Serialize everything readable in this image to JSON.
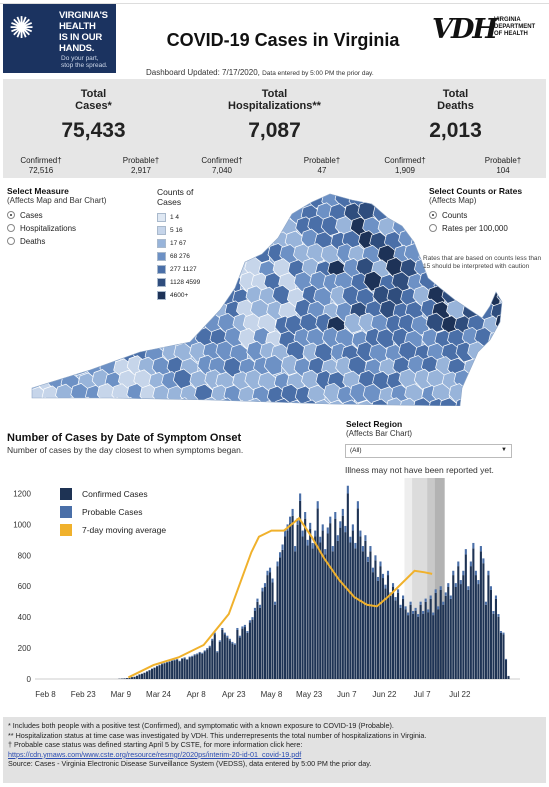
{
  "brand": {
    "line1": "VIRGINIA'S",
    "line2": "HEALTH",
    "line3": "IS IN OUR",
    "line4": "HANDS.",
    "tag1": "Do your part,",
    "tag2": "stop the spread."
  },
  "title": "COVID-19 Cases in Virginia",
  "vdh": {
    "logo": "VDH",
    "dept1": "VIRGINIA",
    "dept2": "DEPARTMENT",
    "dept3": "OF HEALTH"
  },
  "updated": {
    "main": "Dashboard Updated: 7/17/2020,",
    "small": "Data entered by 5:00 PM the prior day."
  },
  "stats": [
    {
      "label1": "Total",
      "label2": "Cases*",
      "value": "75,433",
      "a_label": "Confirmed†",
      "a_value": "72,516",
      "b_label": "Probable†",
      "b_value": "2,917"
    },
    {
      "label1": "Total",
      "label2": "Hospitalizations**",
      "value": "7,087",
      "a_label": "Confirmed†",
      "a_value": "7,040",
      "b_label": "Probable†",
      "b_value": "47"
    },
    {
      "label1": "Total",
      "label2": "Deaths",
      "value": "2,013",
      "a_label": "Confirmed†",
      "a_value": "1,909",
      "b_label": "Probable†",
      "b_value": "104"
    }
  ],
  "measure": {
    "title": "Select Measure",
    "subtitle": "(Affects Map and Bar Chart)",
    "options": [
      "Cases",
      "Hospitalizations",
      "Deaths"
    ],
    "selected": 0
  },
  "legend": {
    "title1": "Counts of",
    "title2": "Cases",
    "bins": [
      {
        "label": "1    4",
        "color": "#dfe8f3"
      },
      {
        "label": "5    16",
        "color": "#c6d5ea"
      },
      {
        "label": "17    67",
        "color": "#98b4da"
      },
      {
        "label": "68    276",
        "color": "#6d91c5"
      },
      {
        "label": "277    1127",
        "color": "#4a6fa8"
      },
      {
        "label": "1128    4599",
        "color": "#2f4d7d"
      },
      {
        "label": "4600+",
        "color": "#1d3257"
      }
    ]
  },
  "rates": {
    "title": "Select Counts or Rates",
    "subtitle": "(Affects Map)",
    "options": [
      "Counts",
      "Rates per 100,000"
    ],
    "selected": 0
  },
  "rates_note": "Rates that are based on counts less than 15 should be interpreted with caution",
  "cases_chart": {
    "title": "Number of Cases by Date of Symptom Onset",
    "subtitle": "Number of cases by the day closest to when symptoms began."
  },
  "region": {
    "title": "Select Region",
    "subtitle": "(Affects Bar Chart)",
    "value": "(All)"
  },
  "illness_note": "Illness may not have been reported yet.",
  "colors": {
    "confirmed": "#1e3354",
    "probable": "#4a6fa8",
    "average": "#f0b12c",
    "brand": "#1b3360"
  },
  "chart_data": {
    "type": "bar",
    "x_ticks": [
      "Feb 8",
      "Feb 23",
      "Mar 9",
      "Mar 24",
      "Apr 8",
      "Apr 23",
      "May 8",
      "May 23",
      "Jun 7",
      "Jun 22",
      "Jul 7",
      "Jul 22"
    ],
    "y_ticks": [
      0,
      200,
      400,
      600,
      800,
      1000,
      1200
    ],
    "ylim": [
      0,
      1300
    ],
    "series": [
      {
        "name": "Confirmed Cases",
        "type": "bar"
      },
      {
        "name": "Probable Cases",
        "type": "bar"
      },
      {
        "name": "7-day moving average",
        "type": "line"
      }
    ],
    "start_date": "2020-02-05",
    "daily_totals": [
      0,
      0,
      0,
      0,
      0,
      0,
      0,
      0,
      0,
      0,
      0,
      0,
      0,
      0,
      0,
      0,
      0,
      0,
      0,
      0,
      0,
      0,
      0,
      0,
      0,
      0,
      0,
      0,
      0,
      0,
      0,
      0,
      2,
      3,
      4,
      6,
      8,
      12,
      15,
      22,
      30,
      35,
      42,
      50,
      58,
      68,
      75,
      85,
      92,
      100,
      105,
      110,
      115,
      122,
      125,
      130,
      118,
      135,
      140,
      128,
      145,
      150,
      160,
      165,
      175,
      170,
      185,
      200,
      215,
      260,
      300,
      180,
      250,
      330,
      300,
      280,
      260,
      240,
      230,
      330,
      280,
      340,
      350,
      310,
      380,
      400,
      460,
      520,
      480,
      590,
      620,
      700,
      720,
      650,
      500,
      760,
      820,
      870,
      960,
      1000,
      1050,
      1100,
      860,
      1040,
      1200,
      960,
      1080,
      900,
      1010,
      880,
      960,
      1150,
      920,
      1000,
      840,
      980,
      1050,
      860,
      1080,
      930,
      1020,
      1100,
      990,
      1250,
      920,
      1000,
      880,
      1150,
      960,
      860,
      930,
      790,
      860,
      720,
      800,
      660,
      760,
      680,
      610,
      700,
      560,
      620,
      530,
      580,
      480,
      540,
      470,
      430,
      500,
      440,
      460,
      420,
      500,
      440,
      520,
      450,
      540,
      430,
      580,
      470,
      600,
      500,
      560,
      620,
      540,
      700,
      620,
      760,
      640,
      700,
      840,
      600,
      760,
      880,
      700,
      640,
      860,
      780,
      500,
      700,
      600,
      440,
      540,
      420,
      310,
      300,
      130,
      20
    ],
    "moving_average": [
      {
        "x": "2020-03-12",
        "y": 10
      },
      {
        "x": "2020-03-22",
        "y": 90
      },
      {
        "x": "2020-04-01",
        "y": 140
      },
      {
        "x": "2020-04-11",
        "y": 220
      },
      {
        "x": "2020-04-21",
        "y": 420
      },
      {
        "x": "2020-04-30",
        "y": 820
      },
      {
        "x": "2020-05-03",
        "y": 920
      },
      {
        "x": "2020-05-08",
        "y": 960
      },
      {
        "x": "2020-05-13",
        "y": 960
      },
      {
        "x": "2020-05-19",
        "y": 1040
      },
      {
        "x": "2020-05-24",
        "y": 920
      },
      {
        "x": "2020-05-29",
        "y": 780
      },
      {
        "x": "2020-06-04",
        "y": 640
      },
      {
        "x": "2020-06-10",
        "y": 530
      },
      {
        "x": "2020-06-15",
        "y": 480
      },
      {
        "x": "2020-06-19",
        "y": 470
      },
      {
        "x": "2020-06-24",
        "y": 540
      },
      {
        "x": "2020-06-29",
        "y": 620
      },
      {
        "x": "2020-07-04",
        "y": 700
      },
      {
        "x": "2020-07-08",
        "y": 690
      },
      {
        "x": "2020-07-11",
        "y": 680
      }
    ],
    "shading_bands": [
      {
        "from": "2020-06-30",
        "to": "2020-07-03",
        "shade": "#eeeeee"
      },
      {
        "from": "2020-07-03",
        "to": "2020-07-09",
        "shade": "#dcdcdc"
      },
      {
        "from": "2020-07-09",
        "to": "2020-07-12",
        "shade": "#c9c9c9"
      },
      {
        "from": "2020-07-12",
        "to": "2020-07-16",
        "shade": "#b3b3b3"
      }
    ],
    "legend_position": "top-left",
    "grid": false
  },
  "footer": {
    "l1": "* Includes both people with a positive test (Confirmed), and symptomatic with a known exposure to COVID-19 (Probable).",
    "l2": "** Hospitalization status at time case was investigated by VDH. This underrepresents the total number of hospitalizations in Virginia.",
    "l3": "† Probable case status was defined starting April 5 by CSTE, for more information click here:",
    "link": "https://cdn.ymaws.com/www.cste.org/resource/resmgr/2020ps/interim-20-id-01_covid-19.pdf",
    "l4": "Source:  Cases - Virginia Electronic Disease Surveillance System (VEDSS), data entered by 5:00 PM the prior day."
  }
}
